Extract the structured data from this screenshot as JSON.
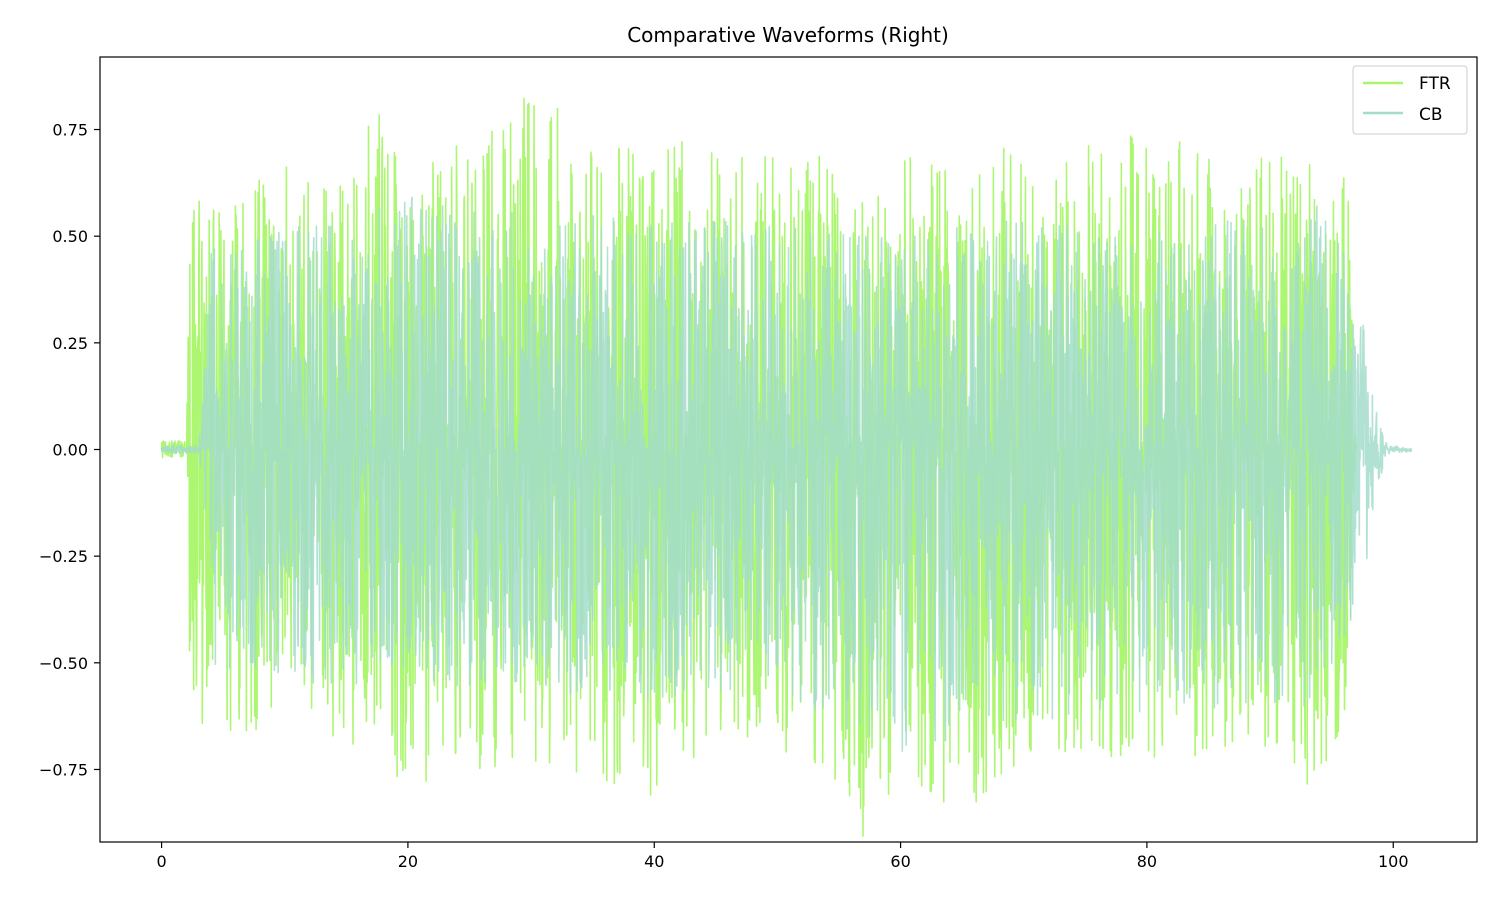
{
  "chart_data": {
    "type": "line",
    "title": "Comparative Waveforms (Right)",
    "xlabel": "",
    "ylabel": "",
    "xlim": [
      -5,
      106.8
    ],
    "ylim": [
      -0.92,
      0.92
    ],
    "x_ticks": [
      0,
      20,
      40,
      60,
      80,
      100
    ],
    "x_tick_labels": [
      "0",
      "20",
      "40",
      "60",
      "80",
      "100"
    ],
    "y_ticks": [
      -0.75,
      -0.5,
      -0.25,
      0.0,
      0.25,
      0.5,
      0.75
    ],
    "y_tick_labels": [
      "−0.75",
      "−0.50",
      "−0.25",
      "0.00",
      "0.25",
      "0.50",
      "0.75"
    ],
    "grid": false,
    "legend_position": "top-right",
    "series": [
      {
        "name": "FTR",
        "color": "#a8f56a",
        "start": 0,
        "end": 97.0,
        "envelope": {
          "x": [
            0,
            2.0,
            2.3,
            3,
            5,
            8,
            10,
            15,
            17.5,
            20,
            25,
            30,
            35,
            40,
            42,
            45,
            50,
            55,
            57,
            60,
            65,
            70,
            75,
            80,
            85,
            88,
            90,
            93,
            95,
            96.5,
            97.0
          ],
          "max": [
            0.02,
            0.02,
            0.54,
            0.65,
            0.59,
            0.64,
            0.67,
            0.63,
            0.81,
            0.65,
            0.73,
            0.84,
            0.75,
            0.68,
            0.8,
            0.7,
            0.7,
            0.72,
            0.6,
            0.7,
            0.64,
            0.75,
            0.73,
            0.74,
            0.73,
            0.61,
            0.74,
            0.67,
            0.71,
            0.6,
            0.0
          ],
          "min": [
            -0.02,
            -0.02,
            -0.57,
            -0.65,
            -0.67,
            -0.71,
            -0.52,
            -0.72,
            -0.7,
            -0.85,
            -0.77,
            -0.73,
            -0.77,
            -0.82,
            -0.73,
            -0.72,
            -0.7,
            -0.78,
            -0.91,
            -0.76,
            -0.87,
            -0.73,
            -0.74,
            -0.73,
            -0.72,
            -0.69,
            -0.72,
            -0.85,
            -0.76,
            -0.6,
            0.0
          ]
        }
      },
      {
        "name": "CB",
        "color": "#a3dccb",
        "start": 0,
        "end": 101.5,
        "envelope": {
          "x": [
            0,
            3.0,
            4,
            8,
            12,
            20,
            30,
            40,
            50,
            60,
            70,
            80,
            90,
            94,
            96,
            97.5,
            98.5,
            99.5,
            101.5
          ],
          "max": [
            0.01,
            0.01,
            0.48,
            0.5,
            0.55,
            0.6,
            0.55,
            0.56,
            0.52,
            0.5,
            0.55,
            0.52,
            0.55,
            0.6,
            0.48,
            0.32,
            0.1,
            0.01,
            0.005
          ],
          "min": [
            -0.01,
            -0.01,
            -0.52,
            -0.52,
            -0.55,
            -0.55,
            -0.56,
            -0.6,
            -0.56,
            -0.73,
            -0.64,
            -0.62,
            -0.6,
            -0.64,
            -0.48,
            -0.35,
            -0.12,
            -0.01,
            -0.005
          ]
        }
      }
    ]
  }
}
